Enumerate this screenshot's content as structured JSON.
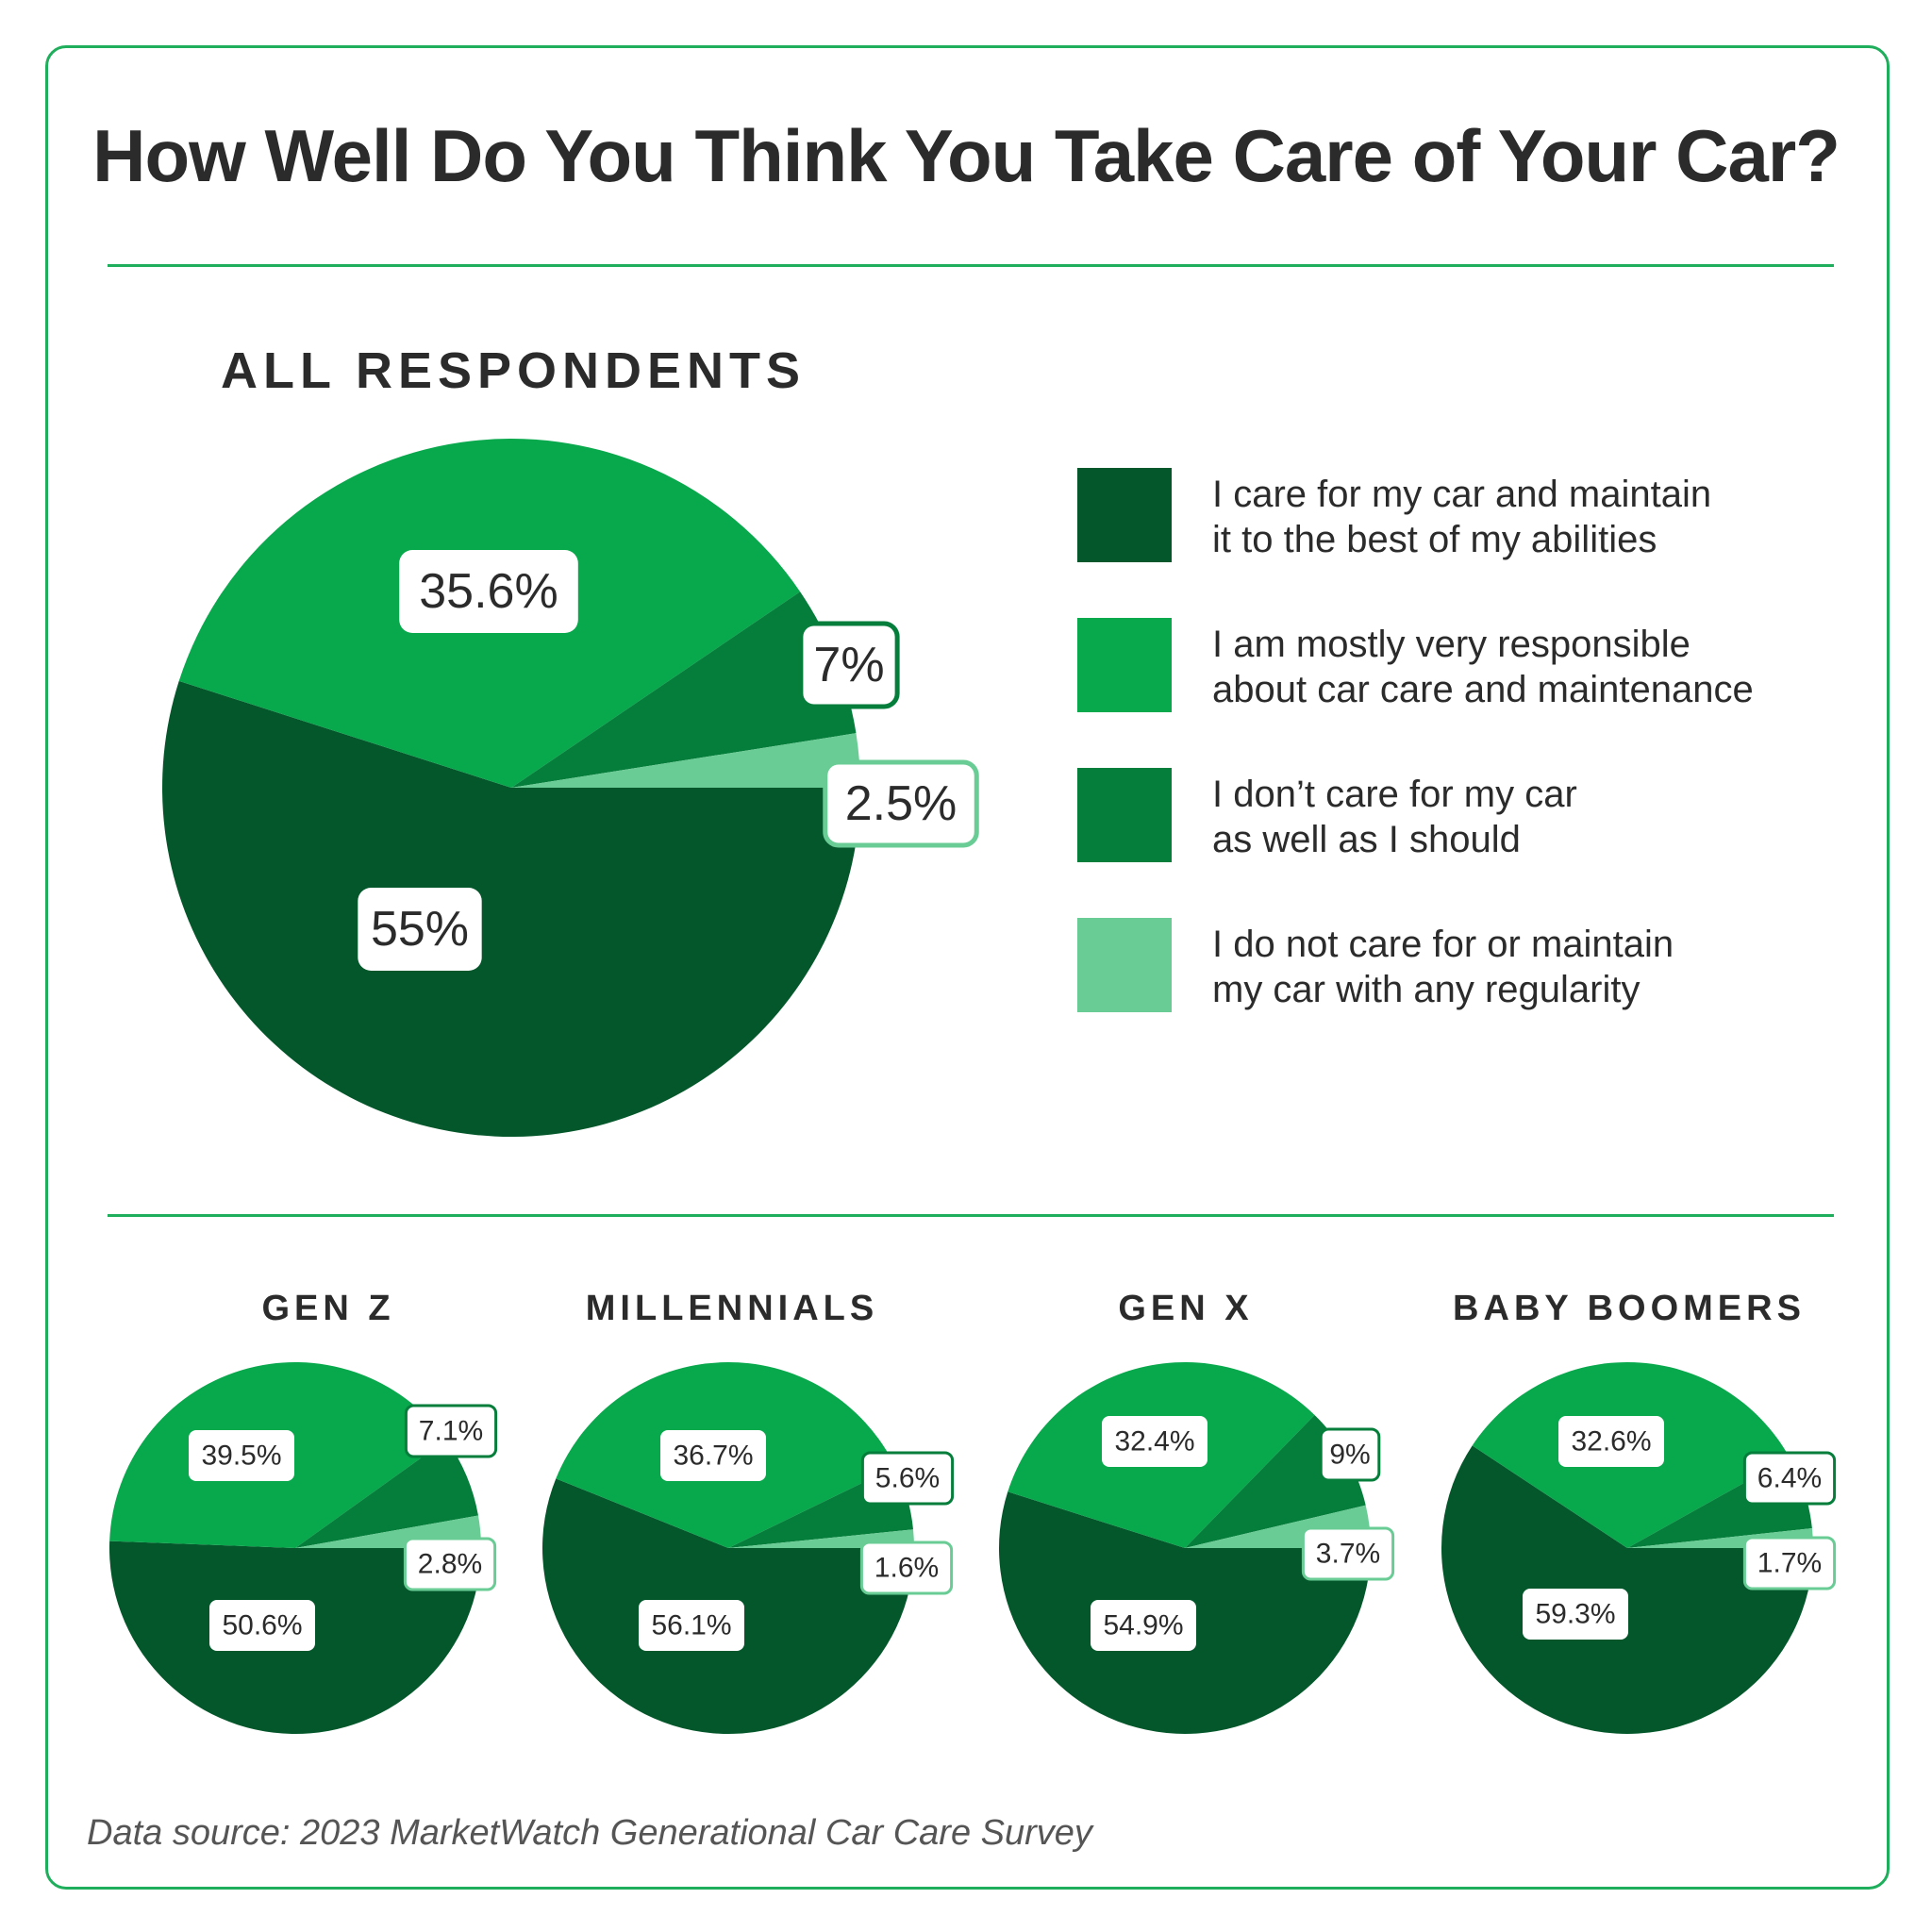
{
  "title": "How Well Do You Think You Take Care of Your Car?",
  "source": "Data source: 2023 MarketWatch Generational Car Care Survey",
  "colors": {
    "accent_border": "#1fae5b",
    "best_of_abilities": "#03572a",
    "mostly_responsible": "#08a84c",
    "not_as_well": "#067e3b",
    "no_regularity": "#6acc95",
    "label_bg": "#ffffff",
    "label_text": "#2b2b2b"
  },
  "legend": [
    {
      "key": "best_of_abilities",
      "line1": "I care for my car and maintain",
      "line2": "it to the best of my abilities"
    },
    {
      "key": "mostly_responsible",
      "line1": "I am mostly very responsible",
      "line2": "about car care and maintenance"
    },
    {
      "key": "not_as_well",
      "line1": "I don’t care for my car",
      "line2": "as well as I should"
    },
    {
      "key": "no_regularity",
      "line1": "I do not care for or maintain",
      "line2": "my car with any regularity"
    }
  ],
  "chart_data": [
    {
      "type": "pie",
      "title": "ALL RESPONDENTS",
      "categories": [
        "I care for my car and maintain it to the best of my abilities",
        "I am mostly very responsible about car care and maintenance",
        "I don’t care for my car as well as I should",
        "I do not care for or maintain my car with any regularity"
      ],
      "values": [
        55,
        35.6,
        7,
        2.5
      ],
      "labels": [
        "55%",
        "35.6%",
        "7%",
        "2.5%"
      ],
      "legend": "right"
    },
    {
      "type": "pie",
      "title": "GEN Z",
      "categories": [
        "I care for my car and maintain it to the best of my abilities",
        "I am mostly very responsible about car care and maintenance",
        "I don’t care for my car as well as I should",
        "I do not care for or maintain my car with any regularity"
      ],
      "values": [
        50.6,
        39.5,
        7.1,
        2.8
      ],
      "labels": [
        "50.6%",
        "39.5%",
        "7.1%",
        "2.8%"
      ]
    },
    {
      "type": "pie",
      "title": "MILLENNIALS",
      "categories": [
        "I care for my car and maintain it to the best of my abilities",
        "I am mostly very responsible about car care and maintenance",
        "I don’t care for my car as well as I should",
        "I do not care for or maintain my car with any regularity"
      ],
      "values": [
        56.1,
        36.7,
        5.6,
        1.6
      ],
      "labels": [
        "56.1%",
        "36.7%",
        "5.6%",
        "1.6%"
      ]
    },
    {
      "type": "pie",
      "title": "GEN X",
      "categories": [
        "I care for my car and maintain it to the best of my abilities",
        "I am mostly very responsible about car care and maintenance",
        "I don’t care for my car as well as I should",
        "I do not care for or maintain my car with any regularity"
      ],
      "values": [
        54.9,
        32.4,
        9,
        3.7
      ],
      "labels": [
        "54.9%",
        "32.4%",
        "9%",
        "3.7%"
      ]
    },
    {
      "type": "pie",
      "title": "BABY BOOMERS",
      "categories": [
        "I care for my car and maintain it to the best of my abilities",
        "I am mostly very responsible about car care and maintenance",
        "I don’t care for my car as well as I should",
        "I do not care for or maintain my car with any regularity"
      ],
      "values": [
        59.3,
        32.6,
        6.4,
        1.7
      ],
      "labels": [
        "59.3%",
        "32.6%",
        "6.4%",
        "1.7%"
      ]
    }
  ]
}
